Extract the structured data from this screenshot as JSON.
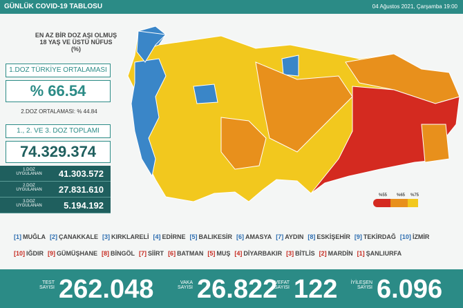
{
  "header": {
    "title": "GÜNLÜK COVID-19 TABLOSU",
    "date": "04 Ağustos 2021, Çarşamba 19:00"
  },
  "vaccine": {
    "heading": "EN AZ BİR DOZ AŞI OLMUŞ 18 YAŞ VE ÜSTÜ NÜFUS (%)",
    "first_dose_label": "1.DOZ TÜRKİYE ORTALAMASI",
    "first_dose_value": "% 66.54",
    "second_dose": "2.DOZ ORTALAMASI: % 44.84",
    "total_label": "1., 2. VE 3. DOZ TOPLAMI",
    "total_value": "74.329.374",
    "doses": [
      {
        "label": "1.DOZ UYGULANAN",
        "value": "41.303.572"
      },
      {
        "label": "2.DOZ UYGULANAN",
        "value": "27.831.610"
      },
      {
        "label": "3.DOZ UYGULANAN",
        "value": "5.194.192"
      }
    ]
  },
  "legend": [
    "%55",
    "%65",
    "%75"
  ],
  "top_provinces": [
    {
      "rank": "[1]",
      "name": "MUĞLA"
    },
    {
      "rank": "[2]",
      "name": "ÇANAKKALE"
    },
    {
      "rank": "[3]",
      "name": "KIRKLARELİ"
    },
    {
      "rank": "[4]",
      "name": "EDİRNE"
    },
    {
      "rank": "[5]",
      "name": "BALIKESİR"
    },
    {
      "rank": "[6]",
      "name": "AMASYA"
    },
    {
      "rank": "[7]",
      "name": "AYDIN"
    },
    {
      "rank": "[8]",
      "name": "ESKİŞEHİR"
    },
    {
      "rank": "[9]",
      "name": "TEKİRDAĞ"
    },
    {
      "rank": "[10]",
      "name": "İZMİR"
    }
  ],
  "bottom_provinces": [
    {
      "rank": "[10]",
      "name": "IĞDIR"
    },
    {
      "rank": "[9]",
      "name": "GÜMÜŞHANE"
    },
    {
      "rank": "[8]",
      "name": "BİNGÖL"
    },
    {
      "rank": "[7]",
      "name": "SİİRT"
    },
    {
      "rank": "[6]",
      "name": "BATMAN"
    },
    {
      "rank": "[5]",
      "name": "MUŞ"
    },
    {
      "rank": "[4]",
      "name": "DİYARBAKIR"
    },
    {
      "rank": "[3]",
      "name": "BİTLİS"
    },
    {
      "rank": "[2]",
      "name": "MARDİN"
    },
    {
      "rank": "[1]",
      "name": "ŞANLIURFA"
    }
  ],
  "stats": [
    {
      "label": "TEST SAYISI",
      "value": "262.048"
    },
    {
      "label": "VAKA SAYISI",
      "value": "26.822"
    },
    {
      "label": "VEFAT SAYISI",
      "value": "122"
    },
    {
      "label": "İYİLEŞEN SAYISI",
      "value": "6.096"
    }
  ]
}
